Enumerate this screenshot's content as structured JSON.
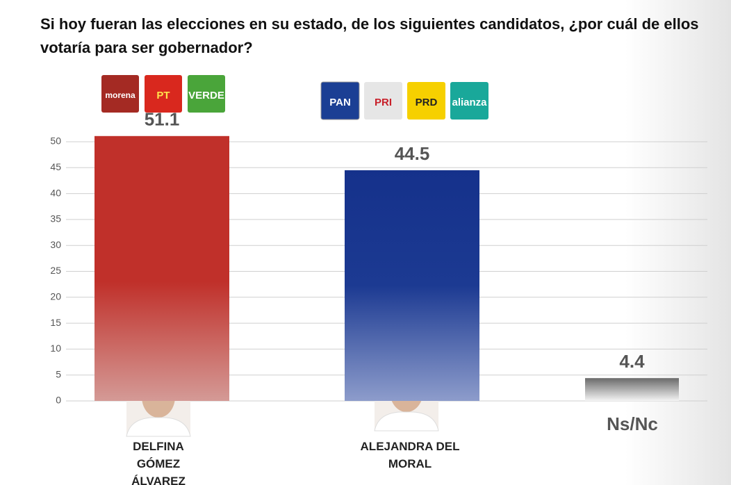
{
  "chart_data": {
    "type": "bar",
    "title": "Si hoy fueran las elecciones en su estado, de los siguientes candidatos, ¿por cuál de ellos votaría para ser gobernador?",
    "categories": [
      "DELFINA GÓMEZ ÁLVAREZ",
      "ALEJANDRA DEL MORAL",
      "Ns/Nc"
    ],
    "values": [
      51.1,
      44.5,
      4.4
    ],
    "colors": [
      "#c0302a",
      "#15318b",
      "#6a6a6a"
    ],
    "logos": [
      [
        "morena",
        "PT",
        "VERDE"
      ],
      [
        "PAN",
        "PRI",
        "PRD",
        "alianza"
      ]
    ],
    "ylim": [
      0,
      50
    ],
    "yticks": [
      0,
      5,
      10,
      15,
      20,
      25,
      30,
      35,
      40,
      45,
      50
    ],
    "grid": true
  }
}
